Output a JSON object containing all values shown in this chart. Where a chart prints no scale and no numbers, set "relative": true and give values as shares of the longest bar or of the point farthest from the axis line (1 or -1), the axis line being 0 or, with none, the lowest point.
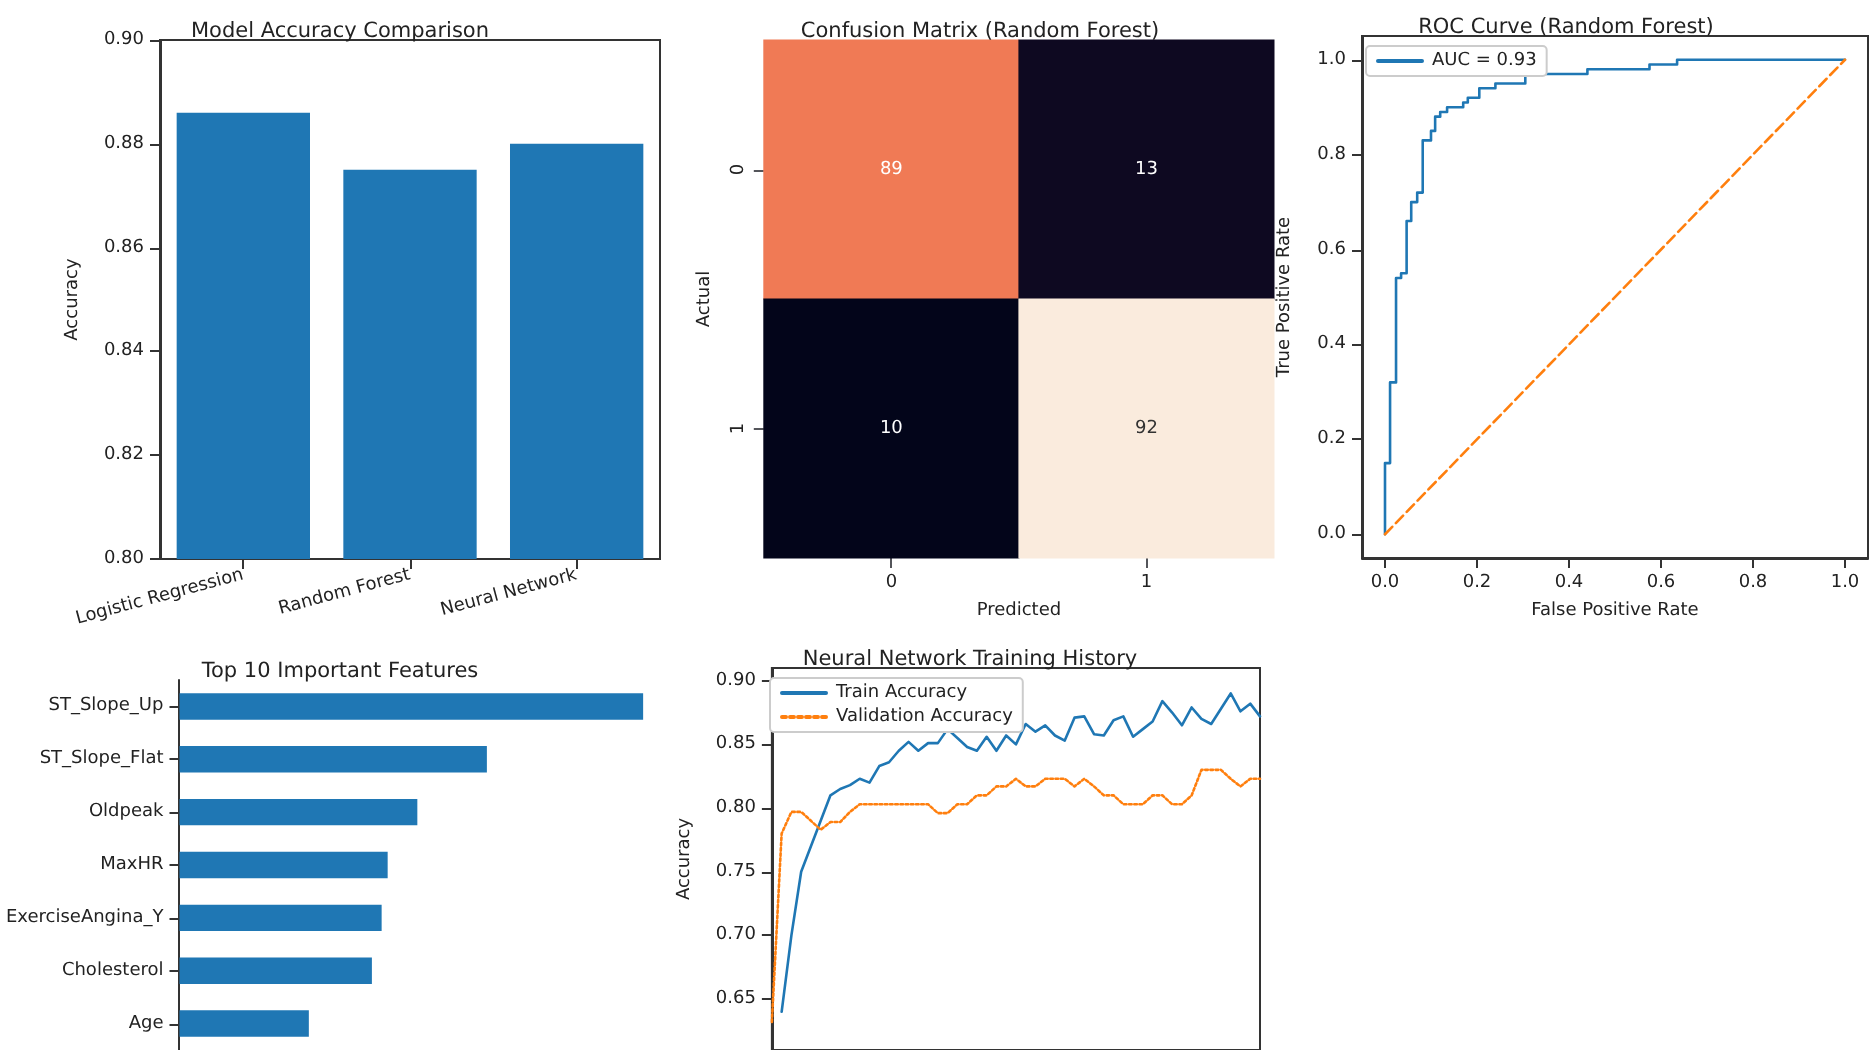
{
  "chart_data": [
    {
      "type": "bar",
      "title": "Model Accuracy Comparison",
      "ylabel": "Accuracy",
      "categories": [
        "Logistic Regression",
        "Random Forest",
        "Neural Network"
      ],
      "values": [
        0.886,
        0.875,
        0.88
      ],
      "color": "#1f77b4",
      "ylim": [
        0.8,
        0.9
      ],
      "yticks": [
        {
          "value": 0.8,
          "label": "0.80"
        },
        {
          "value": 0.82,
          "label": "0.82"
        },
        {
          "value": 0.84,
          "label": "0.84"
        },
        {
          "value": 0.86,
          "label": "0.86"
        },
        {
          "value": 0.88,
          "label": "0.88"
        },
        {
          "value": 0.9,
          "label": "0.90"
        }
      ],
      "grid": false,
      "legend": false
    },
    {
      "type": "heatmap",
      "title": "Confusion Matrix (Random Forest)",
      "xlabel": "Predicted",
      "ylabel": "Actual",
      "categories": [
        "0",
        "1"
      ],
      "y_categories": [
        "0",
        "1"
      ],
      "cells": [
        [
          89,
          13
        ],
        [
          10,
          92
        ]
      ],
      "data_labels": true
    },
    {
      "type": "line",
      "title": "ROC Curve (Random Forest)",
      "xlabel": "False Positive Rate",
      "ylabel": "True Positive Rate",
      "xlim": [
        -0.05,
        1.05
      ],
      "ylim": [
        -0.05,
        1.05
      ],
      "xticks": [
        {
          "value": 0,
          "label": "0.0"
        },
        {
          "value": 0.2,
          "label": "0.2"
        },
        {
          "value": 0.4,
          "label": "0.4"
        },
        {
          "value": 0.6,
          "label": "0.6"
        },
        {
          "value": 0.8,
          "label": "0.8"
        },
        {
          "value": 1,
          "label": "1.0"
        }
      ],
      "yticks": [
        {
          "value": 0,
          "label": "0.0"
        },
        {
          "value": 0.2,
          "label": "0.2"
        },
        {
          "value": 0.4,
          "label": "0.4"
        },
        {
          "value": 0.6,
          "label": "0.6"
        },
        {
          "value": 0.8,
          "label": "0.8"
        },
        {
          "value": 1,
          "label": "1.0"
        }
      ],
      "grid": false,
      "legend": "top left",
      "marker": "none",
      "series": [
        {
          "name": "AUC = 0.93",
          "color": "#1f77b4",
          "line_style": "solid",
          "x": [
            0,
            0,
            0.011,
            0.011,
            0.024,
            0.024,
            0.035,
            0.035,
            0.047,
            0.047,
            0.057,
            0.057,
            0.07,
            0.07,
            0.082,
            0.082,
            0.1,
            0.1,
            0.109,
            0.109,
            0.12,
            0.12,
            0.135,
            0.135,
            0.17,
            0.17,
            0.18,
            0.18,
            0.205,
            0.205,
            0.24,
            0.24,
            0.305,
            0.305,
            0.44,
            0.44,
            0.575,
            0.575,
            0.635,
            0.635,
            1
          ],
          "values": [
            0,
            0.15,
            0.15,
            0.32,
            0.32,
            0.54,
            0.54,
            0.55,
            0.55,
            0.66,
            0.66,
            0.7,
            0.7,
            0.72,
            0.72,
            0.83,
            0.83,
            0.85,
            0.85,
            0.88,
            0.88,
            0.89,
            0.89,
            0.9,
            0.9,
            0.91,
            0.91,
            0.92,
            0.92,
            0.94,
            0.94,
            0.95,
            0.95,
            0.97,
            0.97,
            0.98,
            0.98,
            0.99,
            0.99,
            1,
            1
          ]
        },
        {
          "color": "#ff7f0e",
          "line_style": "dashed",
          "x": [
            0,
            1
          ],
          "values": [
            0,
            1
          ]
        }
      ]
    },
    {
      "type": "bar",
      "orientation": "horizontal",
      "relative": true,
      "title": "Top 10 Important Features",
      "categories": [
        "ST_Slope_Up",
        "ST_Slope_Flat",
        "Oldpeak",
        "MaxHR",
        "ExerciseAngina_Y",
        "Cholesterol",
        "Age"
      ],
      "values": [
        1,
        0.663,
        0.513,
        0.449,
        0.436,
        0.415,
        0.279
      ],
      "color": "#1f77b4",
      "legend": false
    },
    {
      "type": "line",
      "title": "Neural Network Training History",
      "ylabel": "Accuracy",
      "tick_labels": "y",
      "ylim": [
        0.61,
        0.91
      ],
      "yticks": [
        {
          "value": 0.65,
          "label": "0.65"
        },
        {
          "value": 0.7,
          "label": "0.70"
        },
        {
          "value": 0.75,
          "label": "0.75"
        },
        {
          "value": 0.8,
          "label": "0.80"
        },
        {
          "value": 0.85,
          "label": "0.85"
        },
        {
          "value": 0.9,
          "label": "0.90"
        }
      ],
      "categories": [
        null,
        null,
        null,
        null,
        null,
        null,
        null,
        null,
        null,
        null,
        null,
        null,
        null,
        null,
        null,
        null,
        null,
        null,
        null,
        null,
        null,
        null,
        null,
        null,
        null,
        null,
        null,
        null,
        null,
        null,
        null,
        null,
        null,
        null,
        null,
        null,
        null,
        null,
        null,
        null,
        null,
        null,
        null,
        null,
        null,
        null,
        null,
        null,
        null,
        null,
        null
      ],
      "grid": false,
      "legend": "top left",
      "marker": "none",
      "series": [
        {
          "name": "Train Accuracy",
          "color": "#1f77b4",
          "line_style": "solid",
          "values": [
            null,
            0.64,
            0.7,
            0.75,
            0.77,
            0.79,
            0.81,
            0.815,
            0.818,
            0.823,
            0.82,
            0.833,
            0.836,
            0.845,
            0.852,
            0.845,
            0.851,
            0.851,
            0.862,
            0.855,
            0.848,
            0.845,
            0.856,
            0.845,
            0.857,
            0.85,
            0.866,
            0.86,
            0.865,
            0.857,
            0.853,
            0.871,
            0.872,
            0.858,
            0.857,
            0.869,
            0.872,
            0.856,
            0.862,
            0.868,
            0.884,
            0.875,
            0.865,
            0.879,
            0.87,
            0.866,
            0.878,
            0.89,
            0.876,
            0.882,
            0.872
          ]
        },
        {
          "name": "Validation Accuracy",
          "color": "#ff7f0e",
          "line_style": "dotted",
          "values": [
            0.632,
            0.78,
            0.797,
            0.797,
            0.79,
            0.783,
            0.789,
            0.789,
            0.797,
            0.803,
            0.803,
            0.803,
            0.803,
            0.803,
            0.803,
            0.803,
            0.803,
            0.796,
            0.796,
            0.803,
            0.803,
            0.81,
            0.81,
            0.817,
            0.817,
            0.823,
            0.817,
            0.817,
            0.823,
            0.823,
            0.823,
            0.817,
            0.823,
            0.817,
            0.81,
            0.81,
            0.803,
            0.803,
            0.803,
            0.81,
            0.81,
            0.803,
            0.803,
            0.81,
            0.83,
            0.83,
            0.83,
            0.823,
            0.817,
            0.823,
            0.823
          ]
        }
      ]
    }
  ]
}
